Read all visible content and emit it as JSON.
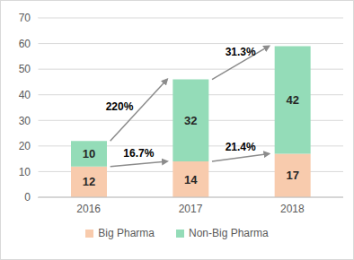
{
  "chart_data": {
    "type": "bar",
    "stacked": true,
    "data_labels": true,
    "grid": true,
    "legend": "bottom",
    "categories": [
      "2016",
      "2017",
      "2018"
    ],
    "series": [
      {
        "name": "Big Pharma",
        "color": "#f8cbad",
        "values": [
          12,
          14,
          17
        ]
      },
      {
        "name": "Non-Big Pharma",
        "color": "#94dcb8",
        "values": [
          10,
          32,
          42
        ]
      }
    ],
    "ylim": [
      0,
      70
    ],
    "yticks": [
      0,
      10,
      20,
      30,
      40,
      50,
      60,
      70
    ],
    "annotations": [
      {
        "text": "220%",
        "series": "Non-Big Pharma",
        "from": "2016",
        "to": "2017"
      },
      {
        "text": "16.7%",
        "series": "Big Pharma",
        "from": "2016",
        "to": "2017"
      },
      {
        "text": "31.3%",
        "series": "Non-Big Pharma",
        "from": "2017",
        "to": "2018"
      },
      {
        "text": "21.4%",
        "series": "Big Pharma",
        "from": "2017",
        "to": "2018"
      }
    ]
  }
}
